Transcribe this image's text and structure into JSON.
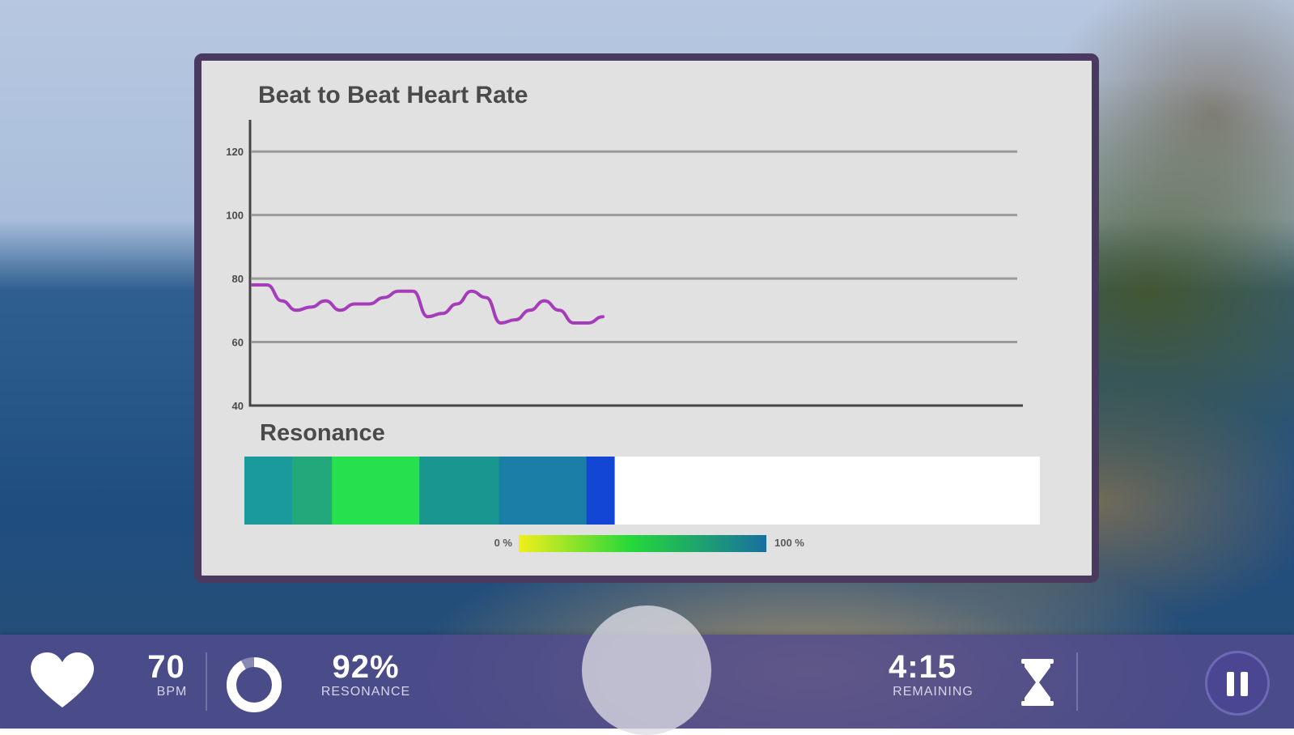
{
  "chart": {
    "title": "Beat to Beat Heart Rate",
    "resonance_title": "Resonance",
    "legend_min": "0 %",
    "legend_max": "100 %"
  },
  "chart_data": {
    "type": "line",
    "title": "Beat to Beat Heart Rate",
    "ylim": [
      40,
      130
    ],
    "y_ticks": [
      "120",
      "100",
      "80",
      "60",
      "40"
    ],
    "y_tick_values": [
      120,
      100,
      80,
      60,
      40
    ],
    "grid": true,
    "series": [
      {
        "color": "#a53dbb",
        "values": [
          78,
          78,
          73,
          70,
          71,
          73,
          70,
          72,
          72,
          74,
          76,
          76,
          68,
          69,
          72,
          76,
          74,
          66,
          67,
          70,
          73,
          70,
          66,
          66,
          68
        ]
      }
    ],
    "resonance_segments": [
      {
        "color": "#1a9a9a",
        "value": 0.06
      },
      {
        "color": "#23a87c",
        "value": 0.05
      },
      {
        "color": "#26e04d",
        "value": 0.11
      },
      {
        "color": "#1a9690",
        "value": 0.1
      },
      {
        "color": "#1b7ea6",
        "value": 0.11
      },
      {
        "color": "#1446d6",
        "value": 0.035
      }
    ],
    "legend_gradient": [
      "#f2ef1a",
      "#25d83a",
      "#1870a0"
    ]
  },
  "status_bar": {
    "bpm_value": "70",
    "bpm_label": "BPM",
    "resonance_value": "92%",
    "resonance_label": "RESONANCE",
    "resonance_progress": 0.92,
    "time_value": "4:15",
    "time_label": "REMAINING"
  },
  "icons": {
    "heart": "heart-icon",
    "ring": "resonance-ring-icon",
    "hourglass": "hourglass-icon",
    "pause": "pause-icon"
  }
}
